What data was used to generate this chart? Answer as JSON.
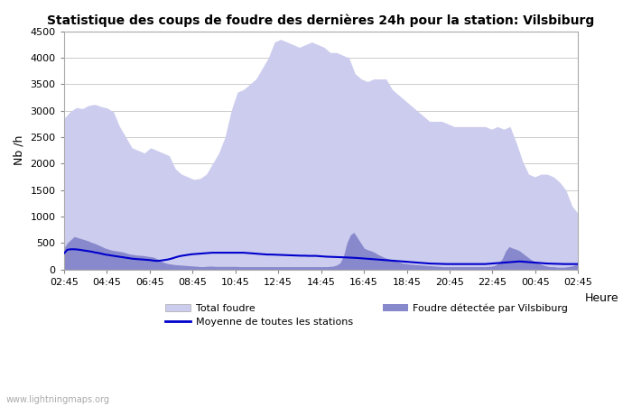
{
  "title": "Statistique des coups de foudre des dernières 24h pour la station: Vilsbiburg",
  "xlabel": "Heure",
  "ylabel": "Nb /h",
  "ylim": [
    0,
    4500
  ],
  "yticks": [
    0,
    500,
    1000,
    1500,
    2000,
    2500,
    3000,
    3500,
    4000,
    4500
  ],
  "xtick_labels": [
    "02:45",
    "04:45",
    "06:45",
    "08:45",
    "10:45",
    "12:45",
    "14:45",
    "16:45",
    "18:45",
    "20:45",
    "22:45",
    "00:45",
    "02:45"
  ],
  "background_color": "#ffffff",
  "plot_bg_color": "#ffffff",
  "grid_color": "#cccccc",
  "total_color": "#ccccee",
  "local_color": "#8888cc",
  "mean_color": "#0000cc",
  "watermark": "www.lightningmaps.org",
  "legend": {
    "total": "Total foudre",
    "mean": "Moyenne de toutes les stations",
    "local": "Foudre détectée par Vilsbiburg"
  },
  "total_foudre": [
    2850,
    2980,
    3060,
    3040,
    3100,
    3120,
    3080,
    3050,
    2980,
    2700,
    2500,
    2300,
    2250,
    2200,
    2300,
    2250,
    2200,
    2150,
    1900,
    1800,
    1750,
    1700,
    1720,
    1800,
    2000,
    2200,
    2500,
    3000,
    3350,
    3400,
    3500,
    3600,
    3800,
    4000,
    4300,
    4350,
    4300,
    4250,
    4200,
    4250,
    4300,
    4250,
    4200,
    4100,
    4100,
    4050,
    4000,
    3700,
    3600,
    3550,
    3600,
    3600,
    3600,
    3400,
    3300,
    3200,
    3100,
    3000,
    2900,
    2800,
    2800,
    2800,
    2750,
    2700,
    2700,
    2700,
    2700,
    2700,
    2700,
    2650,
    2700,
    2650,
    2700,
    2400,
    2050,
    1800,
    1750,
    1800,
    1800,
    1750,
    1650,
    1500,
    1200,
    1050
  ],
  "local_foudre": [
    400,
    500,
    560,
    620,
    600,
    580,
    560,
    540,
    510,
    490,
    460,
    430,
    400,
    380,
    360,
    350,
    340,
    330,
    310,
    290,
    280,
    270,
    265,
    260,
    250,
    240,
    230,
    200,
    160,
    130,
    110,
    100,
    90,
    85,
    80,
    75,
    70,
    65,
    60,
    55,
    50,
    55,
    60,
    60,
    55,
    55,
    55,
    55,
    55,
    55,
    55,
    50,
    50,
    50,
    50,
    50,
    50,
    50,
    50,
    50,
    50,
    50,
    50,
    50,
    50,
    50,
    50,
    50,
    50,
    50,
    50,
    50,
    50,
    50,
    50,
    50,
    50,
    55,
    60,
    80,
    120,
    250,
    500,
    650,
    700,
    600,
    500,
    400,
    370,
    350,
    320,
    280,
    250,
    220,
    200,
    180,
    160,
    140,
    120,
    110,
    100,
    95,
    90,
    85,
    80,
    75,
    70,
    65,
    60,
    55,
    50,
    50,
    50,
    50,
    50,
    50,
    50,
    50,
    50,
    50,
    50,
    50,
    50,
    55,
    60,
    80,
    120,
    200,
    350,
    430,
    400,
    380,
    350,
    300,
    250,
    200,
    160,
    130,
    100,
    80,
    60,
    50,
    50,
    40,
    40,
    40,
    50,
    60,
    80,
    100
  ],
  "mean_foudre": [
    300,
    370,
    380,
    380,
    375,
    365,
    355,
    345,
    335,
    320,
    310,
    295,
    280,
    270,
    260,
    250,
    240,
    230,
    220,
    210,
    200,
    195,
    190,
    185,
    180,
    175,
    165,
    160,
    165,
    175,
    185,
    200,
    220,
    240,
    255,
    265,
    275,
    285,
    290,
    295,
    300,
    305,
    310,
    315,
    315,
    315,
    315,
    315,
    315,
    315,
    315,
    315,
    315,
    310,
    305,
    300,
    295,
    290,
    285,
    280,
    280,
    278,
    275,
    272,
    270,
    268,
    265,
    262,
    260,
    258,
    258,
    255,
    255,
    255,
    250,
    245,
    240,
    238,
    235,
    232,
    230,
    228,
    225,
    222,
    220,
    215,
    210,
    205,
    200,
    195,
    190,
    185,
    180,
    175,
    170,
    165,
    160,
    155,
    150,
    145,
    140,
    135,
    130,
    125,
    120,
    115,
    110,
    108,
    106,
    104,
    102,
    100,
    100,
    100,
    100,
    100,
    100,
    100,
    100,
    100,
    100,
    100,
    100,
    105,
    110,
    115,
    120,
    125,
    130,
    135,
    140,
    145,
    150,
    145,
    140,
    135,
    130,
    125,
    120,
    115,
    110,
    108,
    106,
    104,
    102,
    100,
    100,
    100,
    100,
    100
  ]
}
